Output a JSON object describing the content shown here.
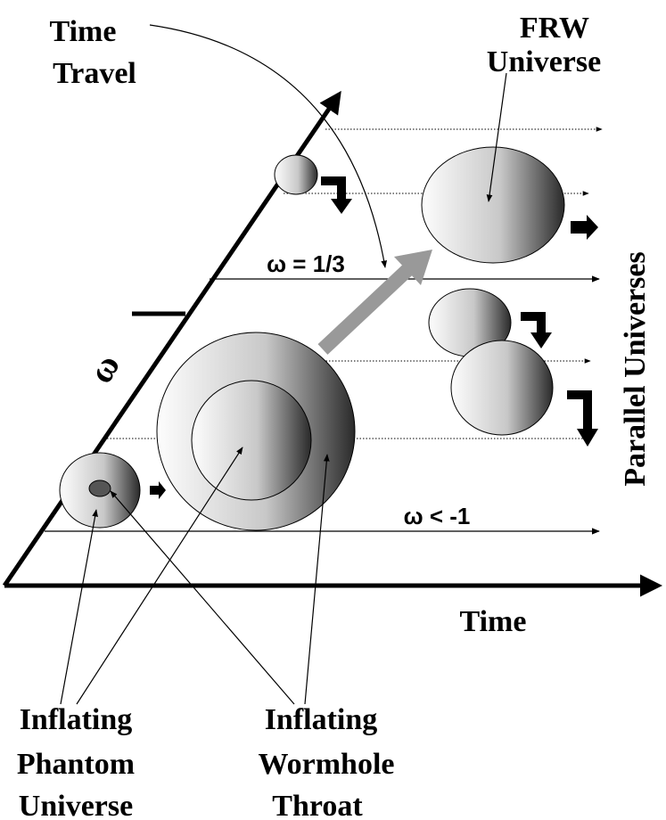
{
  "labels": {
    "time_travel": [
      "Time",
      "Travel"
    ],
    "frw_universe": [
      "FRW",
      "Universe"
    ],
    "omega_one_third": "ω = 1/3",
    "omega_axis": "ω",
    "parallel_universes": "Parallel Universes",
    "omega_less_minus_one": "ω < -1",
    "time_axis": "Time",
    "inflating_phantom_universe": [
      "Inflating",
      "Phantom",
      "Universe"
    ],
    "inflating_wormhole_throat": [
      "Inflating",
      "Wormhole",
      "Throat"
    ]
  }
}
